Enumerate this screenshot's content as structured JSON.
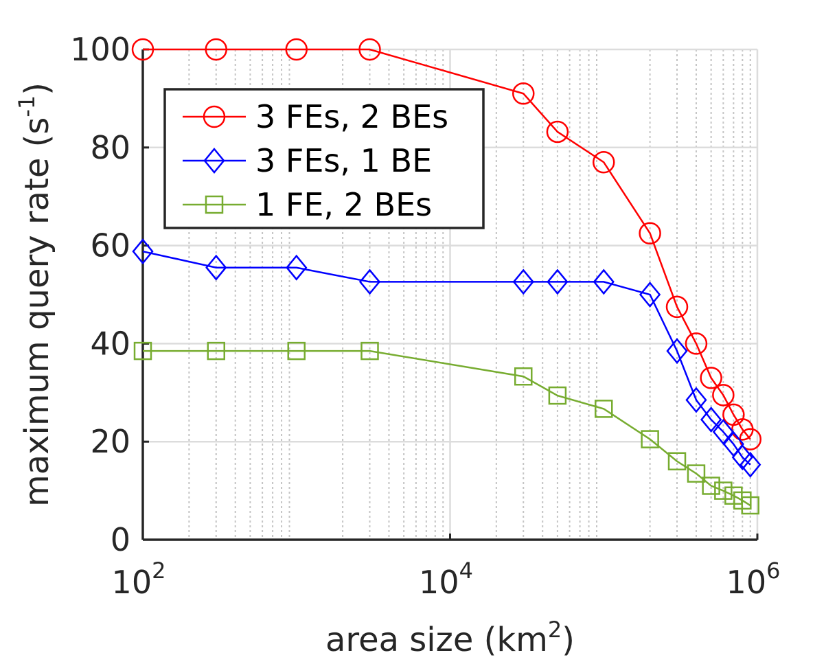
{
  "chart_data": {
    "type": "line",
    "title": "",
    "xlabel": {
      "base": "area size (km",
      "sup": "2",
      "end": ")"
    },
    "ylabel": {
      "base": "maximum query rate (s",
      "sup": "-1",
      "end": ")"
    },
    "xscale": "log",
    "xlim": [
      100,
      1000000
    ],
    "ylim": [
      0,
      100
    ],
    "grid": true,
    "x_ticks": [
      {
        "base": "10",
        "exp": "2",
        "value": 100
      },
      {
        "base": "10",
        "exp": "4",
        "value": 10000
      },
      {
        "base": "10",
        "exp": "6",
        "value": 1000000
      }
    ],
    "y_ticks": [
      0,
      20,
      40,
      60,
      80,
      100
    ],
    "x": [
      100,
      300,
      1000,
      3000,
      30000,
      50000,
      100000,
      200000,
      300000,
      400000,
      500000,
      600000,
      700000,
      800000,
      900000
    ],
    "series": [
      {
        "name": "3 FEs, 2 BEs",
        "color": "#ff0000",
        "marker": "circle",
        "values": [
          100,
          100,
          100,
          100,
          91,
          83.2,
          77,
          62.5,
          47.5,
          40,
          33,
          29.5,
          25.5,
          22.5,
          20.5
        ]
      },
      {
        "name": "3 FEs, 1 BE",
        "color": "#0000ff",
        "marker": "diamond",
        "values": [
          58.8,
          55.5,
          55.5,
          52.6,
          52.6,
          52.6,
          52.6,
          50,
          38.5,
          28.5,
          24.5,
          22,
          19.5,
          16.8,
          15.3
        ]
      },
      {
        "name": "1 FE, 2 BEs",
        "color": "#77ac30",
        "marker": "square",
        "values": [
          38.5,
          38.5,
          38.5,
          38.5,
          33.3,
          29.4,
          26.7,
          20.5,
          16,
          13.5,
          11,
          10,
          9,
          8,
          7
        ]
      }
    ],
    "legend": {
      "position": "top-left",
      "entries": [
        "3 FEs, 2 BEs",
        "3 FEs, 1 BE",
        "1 FE, 2 BEs"
      ]
    }
  }
}
